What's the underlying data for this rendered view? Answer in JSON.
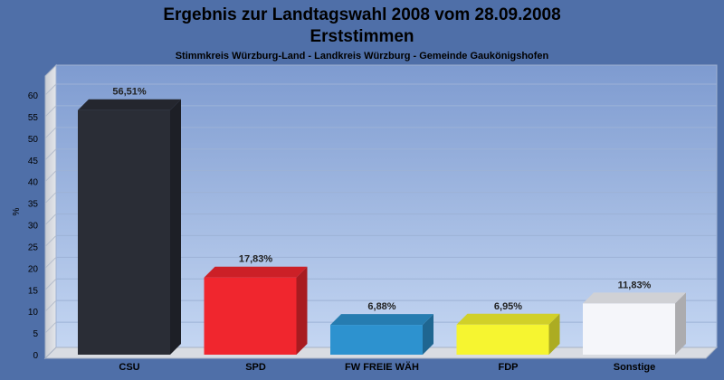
{
  "chart_data": {
    "type": "bar",
    "title": "Ergebnis zur Landtagswahl 2008 vom 28.09.2008",
    "title2": "Erststimmen",
    "subtitle": "Stimmkreis Würzburg-Land - Landkreis Würzburg - Gemeinde Gaukönigshofen",
    "ylabel": "%",
    "xlabel": "",
    "ylim": [
      0,
      60
    ],
    "yticks": [
      0,
      5,
      10,
      15,
      20,
      25,
      30,
      35,
      40,
      45,
      50,
      55,
      60
    ],
    "grid": true,
    "categories": [
      "CSU",
      "SPD",
      "FW FREIE WÄH",
      "FDP",
      "Sonstige"
    ],
    "values": [
      56.51,
      17.83,
      6.88,
      6.95,
      11.83
    ],
    "value_labels": [
      "56,51%",
      "17,83%",
      "6,88%",
      "6,95%",
      "11,83%"
    ],
    "colors": [
      "#2a2d36",
      "#f0262e",
      "#2d92cf",
      "#f6f530",
      "#f5f6fa"
    ]
  }
}
